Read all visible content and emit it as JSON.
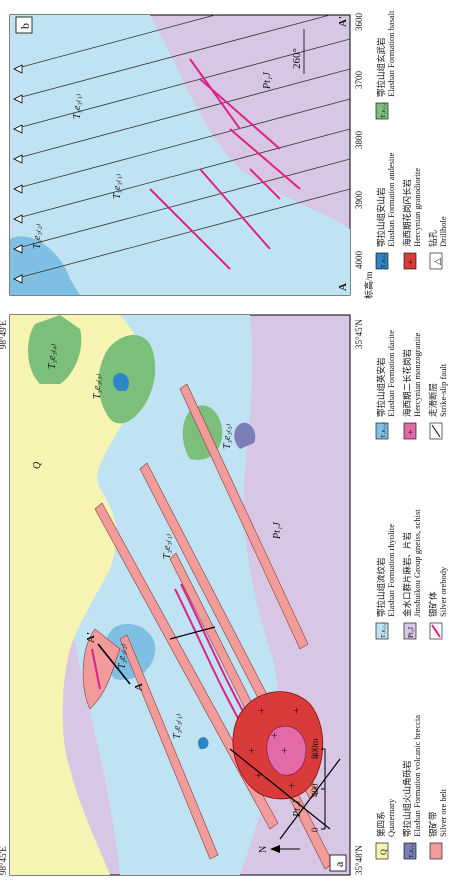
{
  "map_a": {
    "panel_label": "a",
    "coord_top_left": "98°45'E",
    "coord_top_right": "98°49'E",
    "coord_left_bottom": "35°48'N",
    "coord_right_bottom": "35°45'N",
    "north_label": "N",
    "scale_ticks": [
      "0",
      "400",
      "800m"
    ],
    "unit_labels": {
      "Q": "Q",
      "PtJ": "Pt₁J",
      "rhyolite": "T₃e₃₍₁₎",
      "dacite": "T₃e₃₍₂₎",
      "andesite": "T₃e₃₍₃₎",
      "basalt": "T₃e₃₍₄₎",
      "breccia": "T₃e₃₍₅₎"
    },
    "section_A": "A",
    "section_A_prime": "A'"
  },
  "section_b": {
    "panel_label": "b",
    "axis_title": "标高/m",
    "elevation_ticks": [
      "4000",
      "3900",
      "3800",
      "3700",
      "3600"
    ],
    "azimuth": "260°",
    "end_A": "A",
    "end_A_prime": "A'"
  },
  "legend": [
    {
      "key": "Q",
      "zh": "第四系",
      "en": "Quaternary",
      "color": "#f7f3b3",
      "symbol": "Q"
    },
    {
      "key": "breccia",
      "zh": "鄂拉山组火山角砾岩",
      "en": "Elashan Formation volcanic breccia",
      "color": "#7b7fb5",
      "symbol": "T₃e₃₍₅₎"
    },
    {
      "key": "silver_belt",
      "zh": "银矿带",
      "en": "Silver ore belt",
      "color": "#f29b9b",
      "symbol": ""
    },
    {
      "key": "rhyolite",
      "zh": "鄂拉山组流纹岩",
      "en": "Elashan Formation rhyolite",
      "color": "#bfe3f3",
      "symbol": "T₃e₃₍₁₎"
    },
    {
      "key": "PtJ",
      "zh": "金水口群片麻岩、片岩",
      "en": "Jinshuikou Group gneiss, schist",
      "color": "#d8c7e4",
      "symbol": "Pt₁J"
    },
    {
      "key": "orebody",
      "zh": "银矿体",
      "en": "Silver orebody",
      "color": "#e0218a",
      "symbol": ""
    },
    {
      "key": "dacite",
      "zh": "鄂拉山组英安岩",
      "en": "Elashan Formation dacite",
      "color": "#7fbfe3",
      "symbol": "T₃e₃₍₂₎"
    },
    {
      "key": "monzogranite",
      "zh": "海西期二长花岗岩",
      "en": "Hercynian monzogranite",
      "color": "#e46aa7",
      "symbol": "+"
    },
    {
      "key": "fault",
      "zh": "走滑断层",
      "en": "Strike-slip fault",
      "color": "#000000",
      "symbol": ""
    },
    {
      "key": "andesite",
      "zh": "鄂拉山组安山岩",
      "en": "Elashan Formation andesite",
      "color": "#2f86c5",
      "symbol": "T₃e₃₍₃₎"
    },
    {
      "key": "granodiorite",
      "zh": "海西期花岗闪长岩",
      "en": "Hercynian granodiorite",
      "color": "#d93b3b",
      "symbol": "+"
    },
    {
      "key": "drillhole",
      "zh": "钻孔",
      "en": "Drillhole",
      "color": "#ffffff",
      "symbol": "△"
    },
    {
      "key": "basalt",
      "zh": "鄂拉山组玄武岩",
      "en": "Elashan Formation basalt",
      "color": "#7cbf7a",
      "symbol": "T₃e₃₍₄₎"
    }
  ]
}
